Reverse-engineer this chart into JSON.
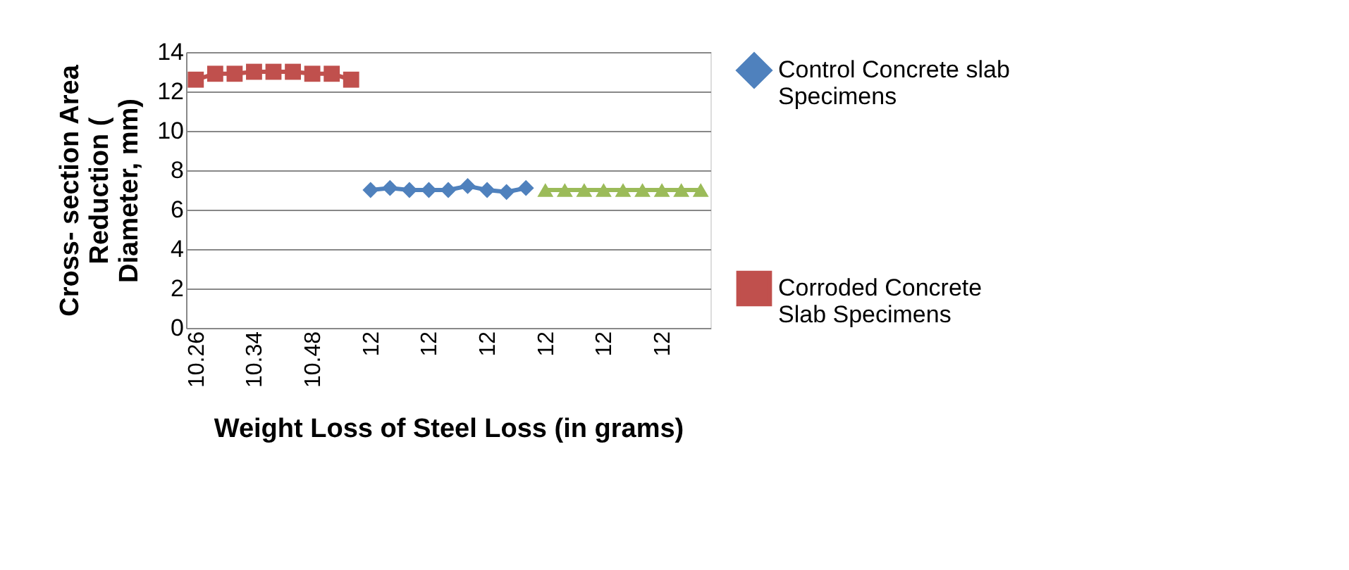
{
  "chart_data": {
    "type": "line",
    "xlabel": "Weight Loss  of Steel Loss (in grams)",
    "ylabel": "Cross- section Area Reduction ( Diameter, mm)",
    "categories": [
      "10.26",
      null,
      null,
      "10.34",
      null,
      null,
      "10.48",
      null,
      null,
      "12",
      null,
      null,
      "12",
      null,
      null,
      "12",
      null,
      null,
      "12",
      null,
      null,
      "12",
      null,
      null,
      "12",
      null,
      null
    ],
    "series": [
      {
        "name": "Control  Concrete slab Specimens",
        "color": "#4f81bd",
        "marker": "diamond",
        "values": [
          null,
          null,
          null,
          null,
          null,
          null,
          null,
          null,
          null,
          7.0,
          7.1,
          7.0,
          7.0,
          7.0,
          7.2,
          7.0,
          6.9,
          7.1,
          null,
          null,
          null,
          null,
          null,
          null,
          null,
          null,
          null
        ]
      },
      {
        "name": "Corroded  Concrete Slab Specimens",
        "color": "#c0504d",
        "marker": "square",
        "values": [
          12.6,
          12.9,
          12.9,
          13.0,
          13.0,
          13.0,
          12.9,
          12.9,
          12.6,
          null,
          null,
          null,
          null,
          null,
          null,
          null,
          null,
          null,
          null,
          null,
          null,
          null,
          null,
          null,
          null,
          null,
          null
        ]
      },
      {
        "color": "#9bbb59",
        "marker": "triangle",
        "values": [
          null,
          null,
          null,
          null,
          null,
          null,
          null,
          null,
          null,
          null,
          null,
          null,
          null,
          null,
          null,
          null,
          null,
          null,
          7.0,
          7.0,
          7.0,
          7.0,
          7.0,
          7.0,
          7.0,
          7.0,
          7.0
        ]
      }
    ],
    "ylim": [
      0,
      14
    ],
    "yticks": [
      0,
      2,
      4,
      6,
      8,
      10,
      12,
      14
    ],
    "grid": "y",
    "legend": "right"
  }
}
